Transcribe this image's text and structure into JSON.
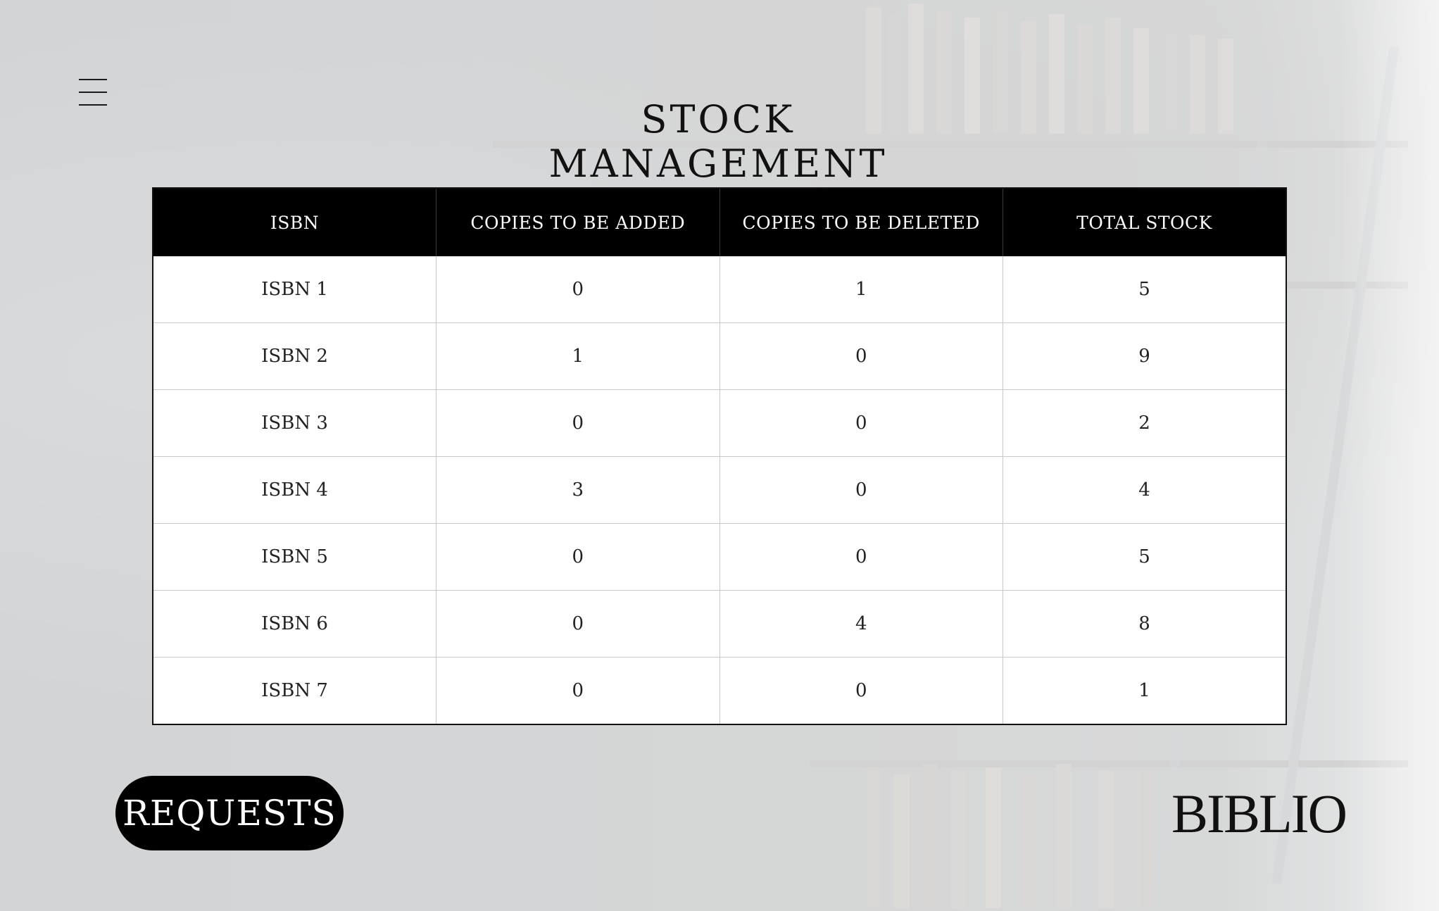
{
  "app": {
    "title": "STOCK MANAGEMENT",
    "logo_text": "BIBLIO"
  },
  "nav": {
    "menu_icon": "hamburger-menu-icon"
  },
  "table": {
    "headers": [
      "ISBN",
      "COPIES TO BE ADDED",
      "COPIES TO BE DELETED",
      "TOTAL STOCK"
    ],
    "rows": [
      [
        "ISBN 1",
        "0",
        "1",
        "5"
      ],
      [
        "ISBN 2",
        "1",
        "0",
        "9"
      ],
      [
        "ISBN 3",
        "0",
        "0",
        "2"
      ],
      [
        "ISBN 4",
        "3",
        "0",
        "4"
      ],
      [
        "ISBN 5",
        "0",
        "0",
        "5"
      ],
      [
        "ISBN 6",
        "0",
        "4",
        "8"
      ],
      [
        "ISBN 7",
        "0",
        "0",
        "1"
      ]
    ]
  },
  "actions": {
    "requests_label": "REQUESTS"
  },
  "colors": {
    "header_bg": "#000000",
    "header_text": "#ffffff",
    "button_bg": "#000000",
    "button_text": "#ffffff",
    "page_overlay": "#eeeff0"
  }
}
